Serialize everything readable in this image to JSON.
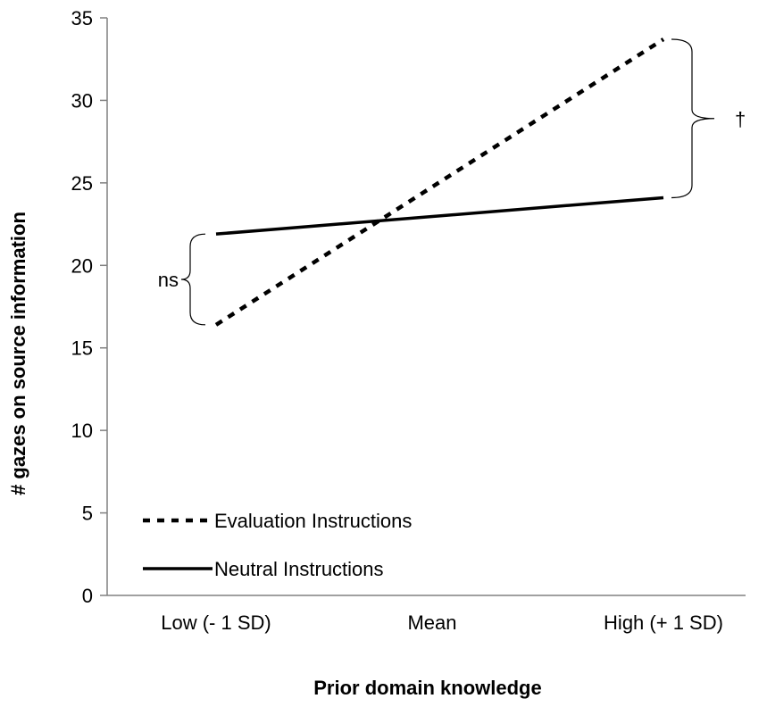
{
  "chart_data": {
    "type": "line",
    "title": "",
    "xlabel": "Prior domain knowledge",
    "ylabel": "# gazes on source information",
    "categories": [
      "Low (- 1 SD)",
      "Mean",
      "High (+ 1 SD)"
    ],
    "ylim": [
      0,
      35
    ],
    "yticks": [
      0,
      5,
      10,
      15,
      20,
      25,
      30,
      35
    ],
    "grid": false,
    "legend_position": "bottom-left",
    "series": [
      {
        "name": "Evaluation Instructions",
        "style": "dotted",
        "values": [
          16.4,
          25.0,
          33.7
        ]
      },
      {
        "name": "Neutral Instructions",
        "style": "solid",
        "values": [
          21.9,
          23.0,
          24.1
        ]
      }
    ],
    "annotations": {
      "low": "ns",
      "high": "†"
    },
    "colors": {
      "line": "#000000",
      "axis": "#808080"
    }
  }
}
